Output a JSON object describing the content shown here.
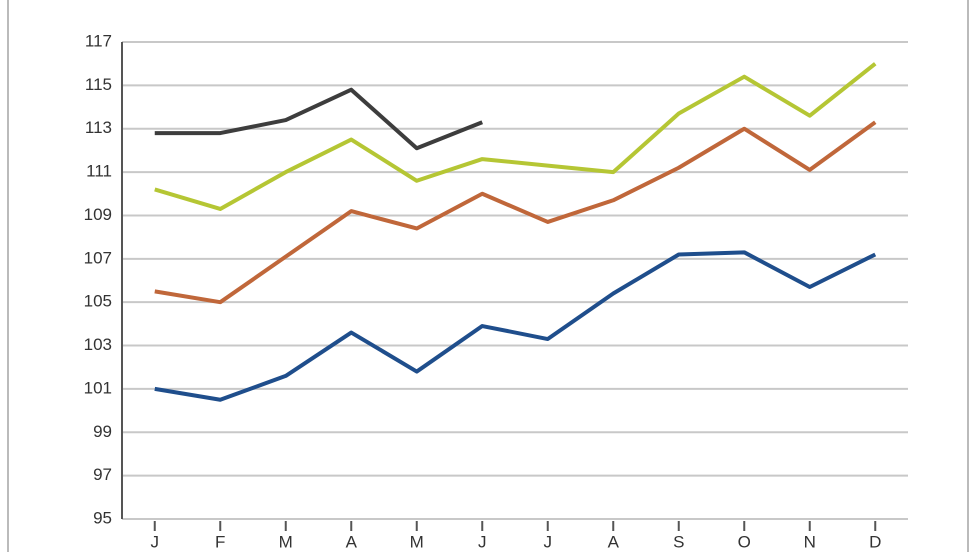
{
  "chart_data": {
    "type": "line",
    "categories": [
      "J",
      "F",
      "M",
      "A",
      "M",
      "J",
      "J",
      "A",
      "S",
      "O",
      "N",
      "D"
    ],
    "series": [
      {
        "color": "#1f4e8c",
        "values": [
          101.0,
          100.5,
          101.6,
          103.6,
          101.8,
          103.9,
          103.3,
          105.4,
          107.2,
          107.3,
          105.7,
          107.2
        ]
      },
      {
        "color": "#c0673a",
        "values": [
          105.5,
          105.0,
          107.1,
          109.2,
          108.4,
          110.0,
          108.7,
          109.7,
          111.2,
          113.0,
          111.1,
          113.3
        ]
      },
      {
        "color": "#b5c634",
        "values": [
          110.2,
          109.3,
          111.0,
          112.5,
          110.6,
          111.6,
          111.3,
          111.0,
          113.7,
          115.4,
          113.6,
          116.0
        ]
      },
      {
        "color": "#3d3d3d",
        "values": [
          112.8,
          112.8,
          113.4,
          114.8,
          112.1,
          113.3,
          null,
          null,
          null,
          null,
          null,
          null
        ]
      }
    ],
    "ylim": [
      95,
      117
    ],
    "yticks": [
      95,
      97,
      99,
      101,
      103,
      105,
      107,
      109,
      111,
      113,
      115,
      117
    ],
    "grid": true
  }
}
